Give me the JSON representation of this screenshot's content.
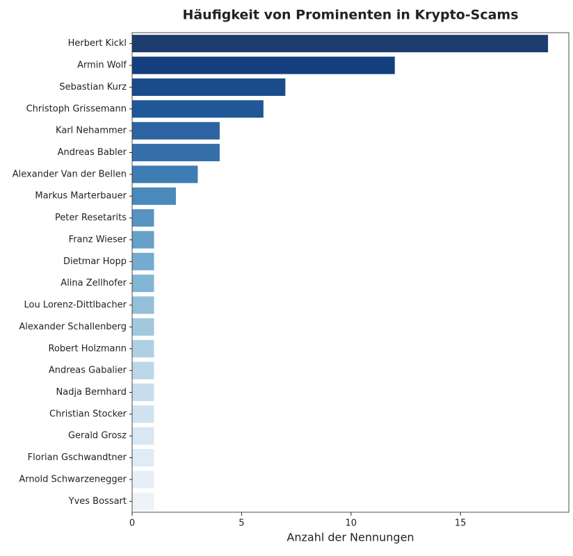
{
  "chart_data": {
    "type": "barh",
    "title": "Häufigkeit von Prominenten in Krypto-Scams",
    "xlabel": "Anzahl der Nennungen",
    "categories": [
      "Herbert Kickl",
      "Armin Wolf",
      "Sebastian Kurz",
      "Christoph Grissemann",
      "Karl Nehammer",
      "Andreas Babler",
      "Alexander Van der Bellen",
      "Markus Marterbauer",
      "Peter Resetarits",
      "Franz Wieser",
      "Dietmar Hopp",
      "Alina Zellhofer",
      "Lou Lorenz-Dittlbacher",
      "Alexander Schallenberg",
      "Robert Holzmann",
      "Andreas Gabalier",
      "Nadja Bernhard",
      "Christian Stocker",
      "Gerald Grosz",
      "Florian Gschwandtner",
      "Arnold Schwarzenegger",
      "Yves Bossart"
    ],
    "values": [
      19,
      12,
      7,
      6,
      4,
      4,
      3,
      2,
      1,
      1,
      1,
      1,
      1,
      1,
      1,
      1,
      1,
      1,
      1,
      1,
      1,
      1
    ],
    "colors": [
      "#1c3d6e",
      "#143f7e",
      "#1a4b8a",
      "#205796",
      "#2c63a0",
      "#3570aa",
      "#3e7db3",
      "#4a89bb",
      "#5894c2",
      "#66a0c8",
      "#74abce",
      "#83b5d4",
      "#93bfd9",
      "#a1c8de",
      "#afd0e3",
      "#bcd7e7",
      "#c7ddec",
      "#d0e2ef",
      "#d8e7f2",
      "#dfebf5",
      "#e6eff7",
      "#edf3f9"
    ],
    "xlim": [
      0,
      19.95
    ],
    "xticks": [
      0,
      5,
      10,
      15
    ]
  }
}
